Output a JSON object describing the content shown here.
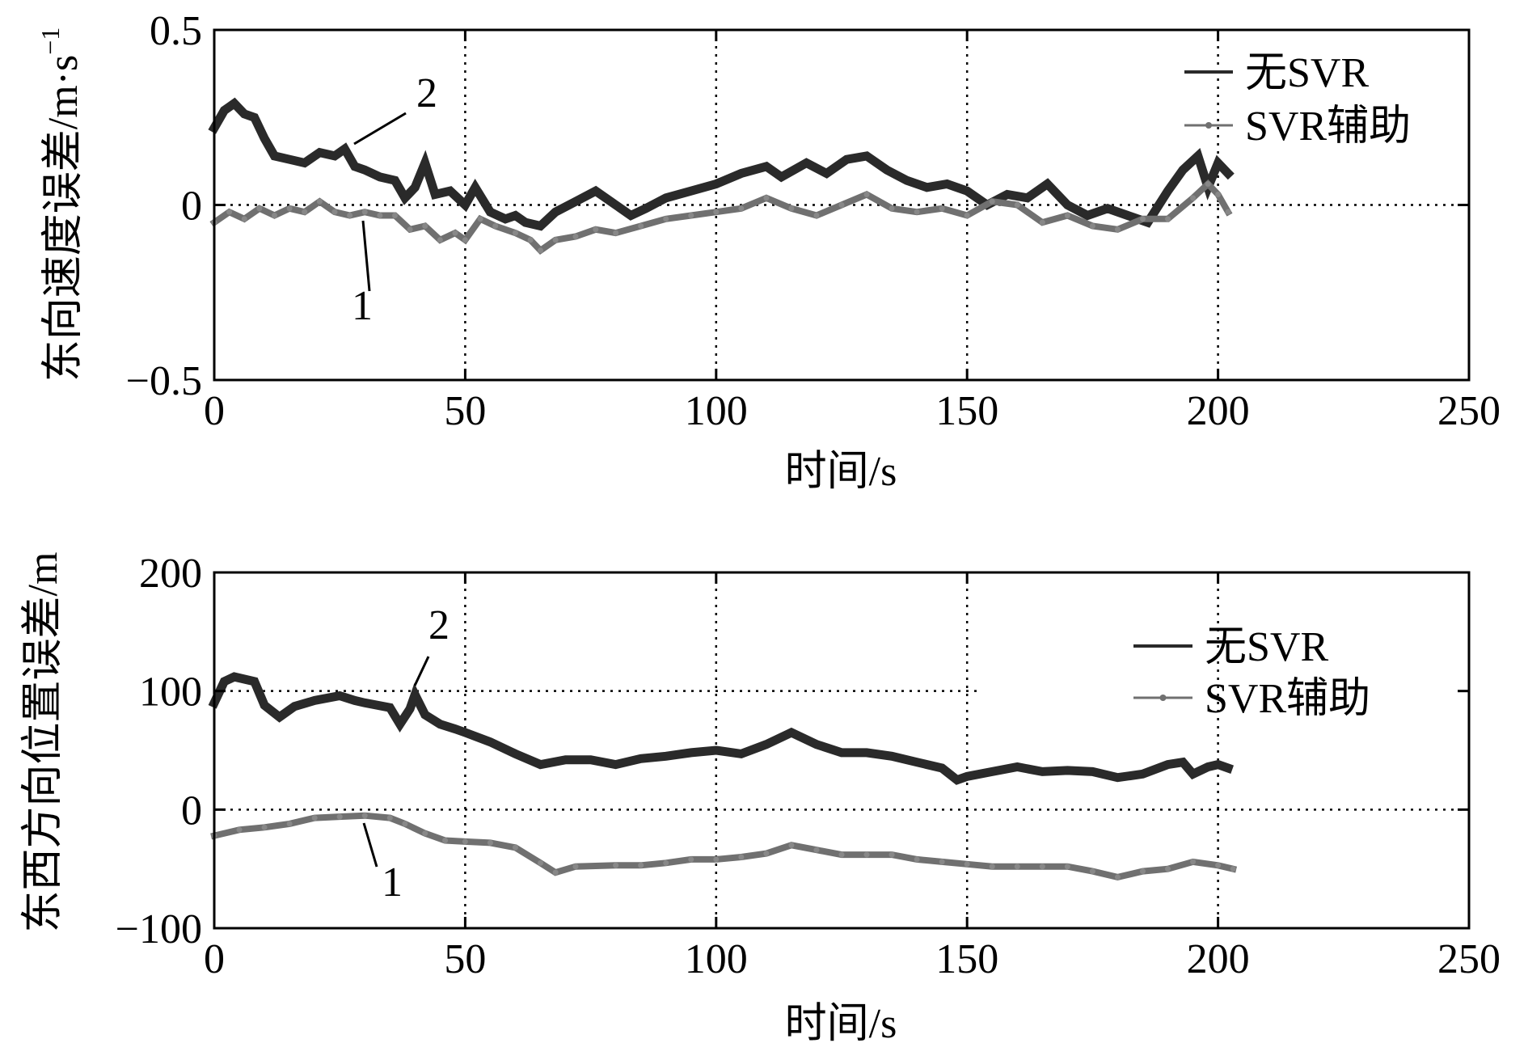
{
  "chart_data": [
    {
      "type": "line",
      "ylabel": "东向速度误差/m·s",
      "ylabel_sup": "−1",
      "xlabel": "时间/s",
      "xlim": [
        0,
        250
      ],
      "ylim": [
        -0.5,
        0.5
      ],
      "xticks": [
        0,
        50,
        100,
        150,
        200,
        250
      ],
      "xtick_labels": [
        "0",
        "50",
        "100",
        "150",
        "200",
        "250"
      ],
      "yticks": [
        -0.5,
        0,
        0.5
      ],
      "ytick_labels": [
        "−0.5",
        "0",
        "0.5"
      ],
      "grid": "dotted",
      "legend_position": "top-right",
      "legend": [
        "无SVR",
        "SVR辅助"
      ],
      "series": [
        {
          "name": "无SVR",
          "color": "#2a2a2a",
          "x": [
            0,
            2,
            4,
            6,
            8,
            10,
            12,
            15,
            18,
            21,
            24,
            26,
            28,
            30,
            33,
            36,
            38,
            40,
            42,
            44,
            47,
            50,
            52,
            55,
            58,
            60,
            62,
            65,
            68,
            72,
            76,
            80,
            83,
            86,
            90,
            95,
            100,
            105,
            110,
            113,
            118,
            122,
            126,
            130,
            134,
            138,
            142,
            146,
            150,
            154,
            158,
            162,
            166,
            170,
            174,
            178,
            182,
            186,
            190,
            193,
            196,
            198,
            200,
            202
          ],
          "y": [
            0.22,
            0.27,
            0.29,
            0.26,
            0.25,
            0.19,
            0.14,
            0.13,
            0.12,
            0.15,
            0.14,
            0.16,
            0.11,
            0.1,
            0.08,
            0.07,
            0.02,
            0.05,
            0.12,
            0.03,
            0.04,
            0.0,
            0.05,
            -0.02,
            -0.04,
            -0.03,
            -0.05,
            -0.06,
            -0.02,
            0.01,
            0.04,
            0.0,
            -0.03,
            -0.01,
            0.02,
            0.04,
            0.06,
            0.09,
            0.11,
            0.08,
            0.12,
            0.09,
            0.13,
            0.14,
            0.1,
            0.07,
            0.05,
            0.06,
            0.04,
            0.0,
            0.03,
            0.02,
            0.06,
            0.0,
            -0.03,
            -0.01,
            -0.03,
            -0.05,
            0.04,
            0.1,
            0.14,
            0.05,
            0.12,
            0.09
          ]
        },
        {
          "name": "SVR辅助",
          "color": "#707070",
          "x": [
            0,
            3,
            6,
            9,
            12,
            15,
            18,
            21,
            24,
            27,
            30,
            33,
            36,
            39,
            42,
            45,
            48,
            50,
            53,
            56,
            60,
            63,
            65,
            68,
            72,
            76,
            80,
            85,
            90,
            95,
            100,
            105,
            110,
            115,
            120,
            125,
            130,
            135,
            140,
            145,
            150,
            155,
            160,
            165,
            170,
            175,
            180,
            185,
            190,
            195,
            198,
            200,
            202
          ],
          "y": [
            -0.05,
            -0.02,
            -0.04,
            -0.01,
            -0.03,
            -0.01,
            -0.02,
            0.01,
            -0.02,
            -0.03,
            -0.02,
            -0.03,
            -0.03,
            -0.07,
            -0.06,
            -0.1,
            -0.08,
            -0.1,
            -0.04,
            -0.06,
            -0.08,
            -0.1,
            -0.13,
            -0.1,
            -0.09,
            -0.07,
            -0.08,
            -0.06,
            -0.04,
            -0.03,
            -0.02,
            -0.01,
            0.02,
            -0.01,
            -0.03,
            0.0,
            0.03,
            -0.01,
            -0.02,
            -0.01,
            -0.03,
            0.01,
            0.0,
            -0.05,
            -0.03,
            -0.06,
            -0.07,
            -0.04,
            -0.04,
            0.02,
            0.06,
            0.03,
            -0.02
          ]
        }
      ],
      "annotations": [
        "2",
        "1"
      ]
    },
    {
      "type": "line",
      "ylabel": "东西方向位置误差/m",
      "xlabel": "时间/s",
      "xlim": [
        0,
        250
      ],
      "ylim": [
        -100,
        200
      ],
      "xticks": [
        0,
        50,
        100,
        150,
        200,
        250
      ],
      "xtick_labels": [
        "0",
        "50",
        "100",
        "150",
        "200",
        "250"
      ],
      "yticks": [
        -100,
        0,
        100,
        200
      ],
      "ytick_labels": [
        "−100",
        "0",
        "100",
        "200"
      ],
      "grid": "dotted",
      "legend_position": "top-right",
      "legend": [
        "无SVR",
        "SVR辅助"
      ],
      "series": [
        {
          "name": "无SVR",
          "color": "#2a2a2a",
          "x": [
            0,
            2,
            4,
            8,
            10,
            13,
            16,
            20,
            25,
            28,
            30,
            35,
            37,
            39,
            40,
            42,
            45,
            48,
            50,
            55,
            60,
            65,
            70,
            75,
            80,
            85,
            90,
            95,
            100,
            105,
            110,
            115,
            120,
            125,
            130,
            135,
            140,
            145,
            148,
            150,
            155,
            160,
            165,
            170,
            175,
            180,
            185,
            190,
            193,
            195,
            198,
            200,
            202
          ],
          "y": [
            90,
            108,
            112,
            108,
            88,
            78,
            87,
            92,
            96,
            92,
            90,
            86,
            72,
            85,
            97,
            80,
            72,
            68,
            65,
            57,
            47,
            38,
            42,
            42,
            38,
            43,
            45,
            48,
            50,
            47,
            55,
            65,
            55,
            48,
            48,
            45,
            40,
            35,
            25,
            28,
            32,
            36,
            32,
            33,
            32,
            27,
            30,
            38,
            40,
            30,
            36,
            38,
            35
          ]
        },
        {
          "name": "SVR辅助",
          "color": "#707070",
          "x": [
            0,
            5,
            10,
            15,
            20,
            25,
            30,
            35,
            38,
            42,
            46,
            50,
            55,
            60,
            65,
            68,
            72,
            80,
            85,
            90,
            95,
            100,
            105,
            110,
            115,
            120,
            125,
            130,
            135,
            140,
            145,
            150,
            155,
            160,
            165,
            170,
            175,
            180,
            185,
            190,
            195,
            200,
            203
          ],
          "y": [
            -22,
            -17,
            -15,
            -12,
            -7,
            -6,
            -5,
            -7,
            -12,
            -20,
            -26,
            -27,
            -28,
            -32,
            -45,
            -53,
            -48,
            -47,
            -47,
            -45,
            -42,
            -42,
            -40,
            -37,
            -30,
            -34,
            -38,
            -38,
            -38,
            -42,
            -44,
            -46,
            -48,
            -48,
            -48,
            -48,
            -52,
            -57,
            -52,
            -50,
            -44,
            -47,
            -50
          ]
        }
      ],
      "annotations": [
        "2",
        "1"
      ]
    }
  ]
}
